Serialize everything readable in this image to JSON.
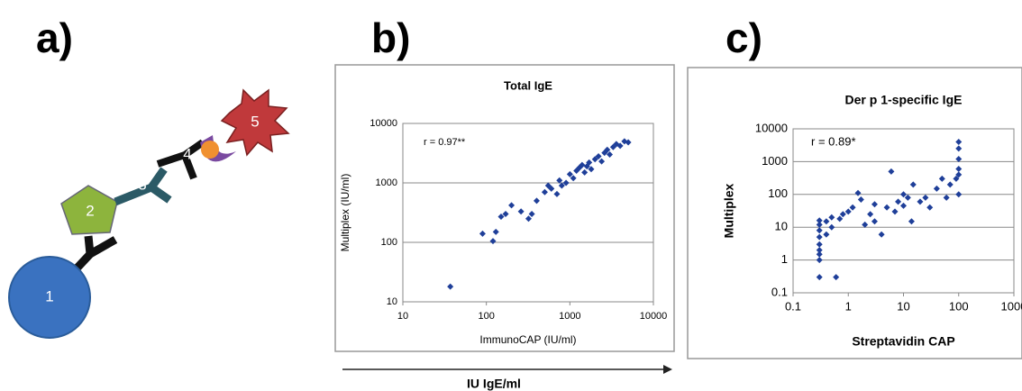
{
  "panels": [
    "a)",
    "b)",
    "c)"
  ],
  "diagram": {
    "labels": [
      "1",
      "2",
      "3",
      "4",
      "5"
    ]
  },
  "arrow_label": "IU IgE/ml",
  "chart_data": [
    {
      "type": "scatter",
      "title": "Total IgE",
      "x_label": "ImmunoCAP (IU/ml)",
      "y_label": "Multiplex (IU/ml)",
      "annotation": "r = 0.97**",
      "color": "#1f3f99",
      "log_scale": true,
      "grid": true,
      "xlim": [
        10,
        10000
      ],
      "ylim": [
        10,
        10000
      ],
      "xticks": [
        10,
        100,
        1000,
        10000
      ],
      "yticks": [
        10,
        100,
        1000,
        10000
      ],
      "x": [
        37,
        90,
        120,
        130,
        150,
        170,
        200,
        260,
        320,
        350,
        400,
        500,
        550,
        600,
        700,
        750,
        800,
        900,
        1000,
        1100,
        1200,
        1300,
        1400,
        1500,
        1600,
        1700,
        1800,
        2000,
        2200,
        2400,
        2600,
        2800,
        3000,
        3300,
        3600,
        4000,
        4500,
        5000
      ],
      "values": [
        18,
        140,
        105,
        150,
        270,
        300,
        420,
        330,
        250,
        300,
        500,
        700,
        900,
        800,
        650,
        1100,
        900,
        1000,
        1400,
        1200,
        1600,
        1800,
        2000,
        1500,
        1900,
        2200,
        1700,
        2500,
        2800,
        2300,
        3200,
        3600,
        3000,
        4000,
        4500,
        4200,
        5000,
        4800
      ]
    },
    {
      "type": "scatter",
      "title": "Der p 1-specific IgE",
      "x_label": "Streptavidin CAP",
      "y_label": "Multiplex",
      "annotation": "r = 0.89*",
      "color": "#1f3f99",
      "log_scale": true,
      "grid": true,
      "xlim": [
        0.1,
        1000
      ],
      "ylim": [
        0.1,
        10000
      ],
      "xticks": [
        0.1,
        1,
        10,
        100,
        1000
      ],
      "yticks": [
        0.1,
        1,
        10,
        100,
        1000,
        10000
      ],
      "x": [
        0.3,
        0.3,
        0.3,
        0.3,
        0.3,
        0.3,
        0.3,
        0.3,
        0.3,
        0.4,
        0.4,
        0.5,
        0.5,
        0.6,
        0.7,
        0.8,
        1,
        1.2,
        1.5,
        1.7,
        2,
        2.5,
        3,
        3,
        4,
        5,
        6,
        7,
        8,
        10,
        10,
        12,
        14,
        15,
        20,
        25,
        30,
        40,
        50,
        60,
        70,
        90,
        100,
        100,
        100,
        100,
        100,
        100
      ],
      "values": [
        0.3,
        1,
        1.5,
        2,
        3,
        5,
        8,
        12,
        16,
        6,
        15,
        10,
        20,
        0.3,
        18,
        25,
        30,
        40,
        110,
        70,
        12,
        25,
        50,
        15,
        6,
        40,
        500,
        30,
        60,
        45,
        100,
        80,
        15,
        200,
        60,
        80,
        40,
        150,
        300,
        80,
        200,
        300,
        100,
        400,
        600,
        1200,
        2500,
        4000
      ]
    }
  ]
}
